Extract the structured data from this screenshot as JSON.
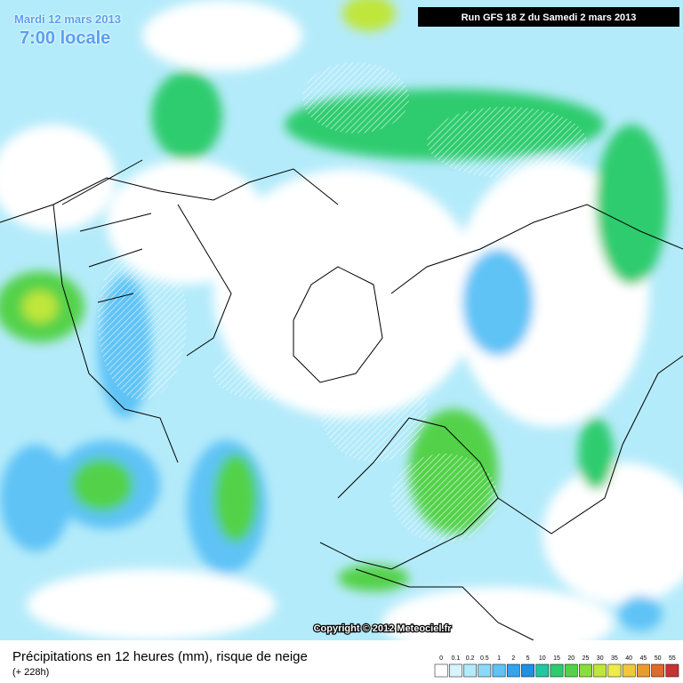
{
  "header": {
    "date": "Mardi 12 mars 2013",
    "time": "7:00 locale",
    "run": "Run GFS 18 Z du Samedi 2 mars 2013"
  },
  "map": {
    "copyright": "Copyright © 2012 Meteociel.fr"
  },
  "footer": {
    "title": "Précipitations en 12 heures (mm), risque de neige",
    "lead": "(+ 228h)"
  },
  "legend": {
    "labels": [
      "0",
      "0.1",
      "0.2",
      "0.5",
      "1",
      "2",
      "5",
      "10",
      "15",
      "20",
      "25",
      "30",
      "35",
      "40",
      "45",
      "50",
      "55"
    ],
    "colors": [
      "#ffffff",
      "#d7f4fc",
      "#b4ebfa",
      "#8cd9f8",
      "#5ec3f6",
      "#2fa4ef",
      "#1e90e6",
      "#1fc8a0",
      "#2dcc6e",
      "#52d24a",
      "#8ade3a",
      "#bfe63a",
      "#ecec4a",
      "#f0c83c",
      "#eb9b2d",
      "#e06a28",
      "#c83232"
    ]
  }
}
